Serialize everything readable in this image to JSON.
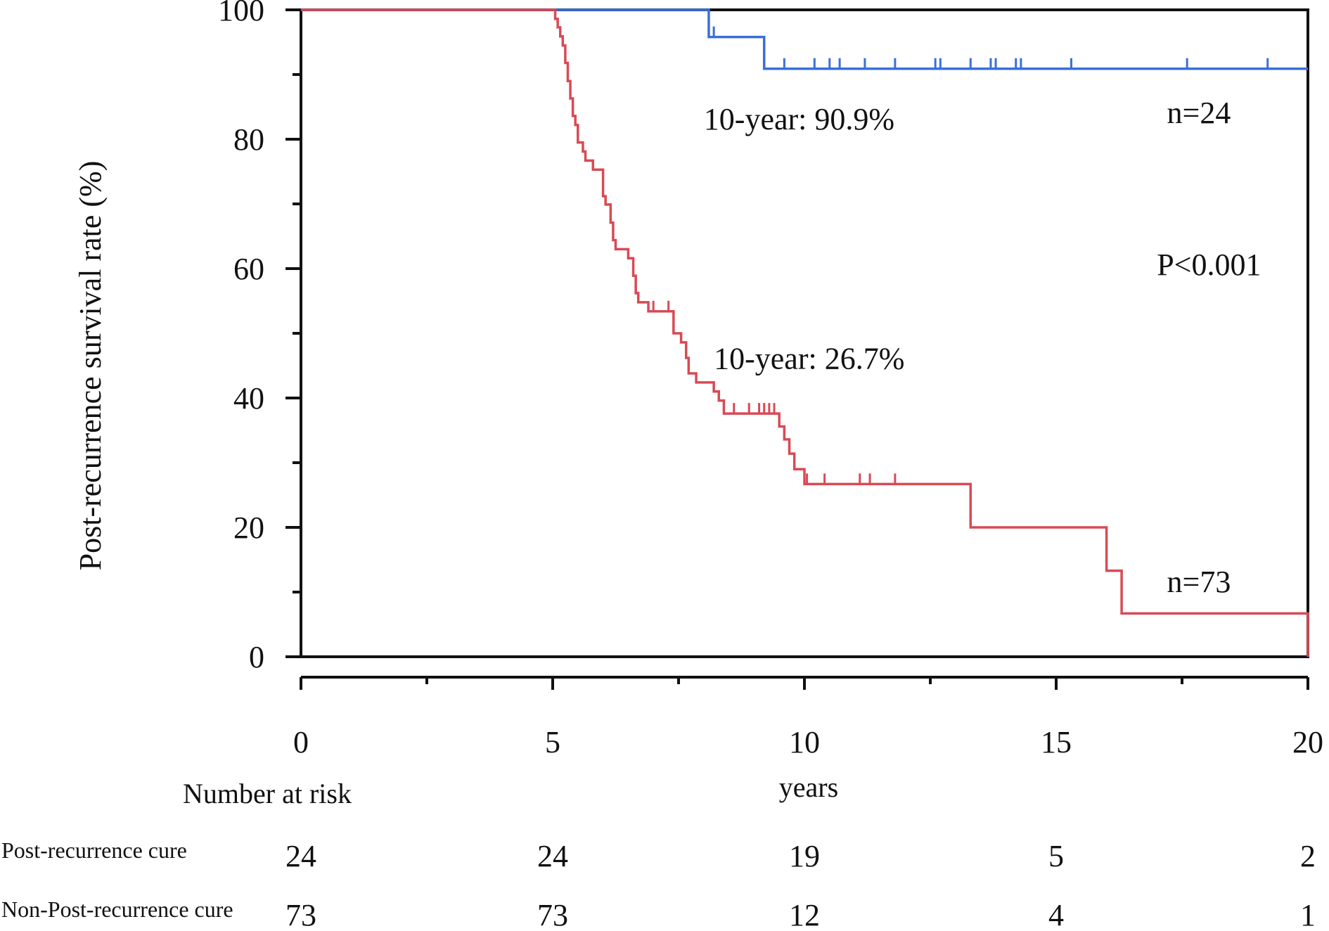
{
  "chart_data": {
    "type": "line",
    "subtype": "kaplan-meier",
    "title": "",
    "xlabel": "years",
    "ylabel": "Post-recurrence survival rate (%)",
    "xlim": [
      0,
      20
    ],
    "ylim": [
      0,
      100
    ],
    "x_ticks": [
      0,
      5,
      10,
      15,
      20
    ],
    "y_ticks": [
      0,
      20,
      40,
      60,
      80,
      100
    ],
    "grid": false,
    "legend": "none",
    "series": [
      {
        "color": "#3a6fd8",
        "steps": [
          [
            0,
            100
          ],
          [
            8.1,
            100
          ],
          [
            8.1,
            95.8
          ],
          [
            9.2,
            95.8
          ],
          [
            9.2,
            90.9
          ],
          [
            20,
            90.9
          ]
        ],
        "censor_marks": [
          [
            8.2,
            95.8
          ],
          [
            9.6,
            90.9
          ],
          [
            10.2,
            90.9
          ],
          [
            10.5,
            90.9
          ],
          [
            10.7,
            90.9
          ],
          [
            11.2,
            90.9
          ],
          [
            11.8,
            90.9
          ],
          [
            12.6,
            90.9
          ],
          [
            12.7,
            90.9
          ],
          [
            13.3,
            90.9
          ],
          [
            13.7,
            90.9
          ],
          [
            13.8,
            90.9
          ],
          [
            14.2,
            90.9
          ],
          [
            14.3,
            90.9
          ],
          [
            15.3,
            90.9
          ],
          [
            17.6,
            90.9
          ],
          [
            19.2,
            90.9
          ]
        ]
      },
      {
        "color": "#d84a55",
        "steps": [
          [
            0,
            100
          ],
          [
            5.0,
            100
          ],
          [
            5.05,
            98.6
          ],
          [
            5.1,
            97.3
          ],
          [
            5.15,
            95.9
          ],
          [
            5.2,
            94.5
          ],
          [
            5.25,
            91.8
          ],
          [
            5.3,
            89.0
          ],
          [
            5.35,
            86.3
          ],
          [
            5.4,
            83.6
          ],
          [
            5.45,
            82.2
          ],
          [
            5.5,
            79.5
          ],
          [
            5.6,
            78.1
          ],
          [
            5.65,
            76.7
          ],
          [
            5.8,
            75.3
          ],
          [
            5.9,
            75.3
          ],
          [
            6.0,
            71.2
          ],
          [
            6.05,
            69.9
          ],
          [
            6.15,
            67.1
          ],
          [
            6.2,
            64.4
          ],
          [
            6.25,
            63.0
          ],
          [
            6.5,
            61.6
          ],
          [
            6.6,
            58.9
          ],
          [
            6.65,
            56.2
          ],
          [
            6.7,
            54.8
          ],
          [
            6.8,
            54.8
          ],
          [
            6.9,
            53.4
          ],
          [
            7.0,
            53.4
          ],
          [
            7.2,
            53.4
          ],
          [
            7.4,
            50.0
          ],
          [
            7.55,
            48.6
          ],
          [
            7.65,
            46.2
          ],
          [
            7.7,
            43.8
          ],
          [
            7.85,
            42.4
          ],
          [
            8.2,
            41.0
          ],
          [
            8.3,
            39.6
          ],
          [
            8.4,
            37.6
          ],
          [
            9.4,
            37.6
          ],
          [
            9.5,
            35.6
          ],
          [
            9.6,
            33.6
          ],
          [
            9.7,
            31.4
          ],
          [
            9.8,
            29.0
          ],
          [
            10.0,
            26.7
          ],
          [
            13.3,
            26.7
          ],
          [
            13.3,
            20.0
          ],
          [
            16.0,
            20.0
          ],
          [
            16.0,
            13.3
          ],
          [
            16.3,
            13.3
          ],
          [
            16.3,
            6.7
          ],
          [
            20.0,
            6.7
          ],
          [
            20.0,
            0
          ]
        ],
        "censor_marks": [
          [
            6.7,
            54.8
          ],
          [
            7.0,
            53.4
          ],
          [
            7.3,
            53.4
          ],
          [
            8.6,
            37.6
          ],
          [
            8.9,
            37.6
          ],
          [
            9.1,
            37.6
          ],
          [
            9.2,
            37.6
          ],
          [
            9.3,
            37.6
          ],
          [
            9.4,
            37.6
          ],
          [
            10.05,
            26.7
          ],
          [
            10.4,
            26.7
          ],
          [
            11.1,
            26.7
          ],
          [
            11.3,
            26.7
          ],
          [
            11.8,
            26.7
          ]
        ]
      }
    ],
    "annotations": [
      {
        "text": "10-year: 90.9%",
        "x": 8.0,
        "y": 81.5
      },
      {
        "text": "n=24",
        "x": 17.2,
        "y": 82.5
      },
      {
        "text": "P<0.001",
        "x": 17.0,
        "y": 59.0
      },
      {
        "text": "10-year: 26.7%",
        "x": 8.2,
        "y": 44.5
      },
      {
        "text": "n=73",
        "x": 17.2,
        "y": 10.0
      }
    ]
  },
  "risk_table": {
    "heading": "Number at risk",
    "rows": [
      {
        "label": "Post-recurrence cure",
        "values": [
          "24",
          "24",
          "19",
          "5",
          "2"
        ]
      },
      {
        "label": "Non-Post-recurrence cure",
        "values": [
          "73",
          "73",
          "12",
          "4",
          "1"
        ]
      }
    ]
  }
}
